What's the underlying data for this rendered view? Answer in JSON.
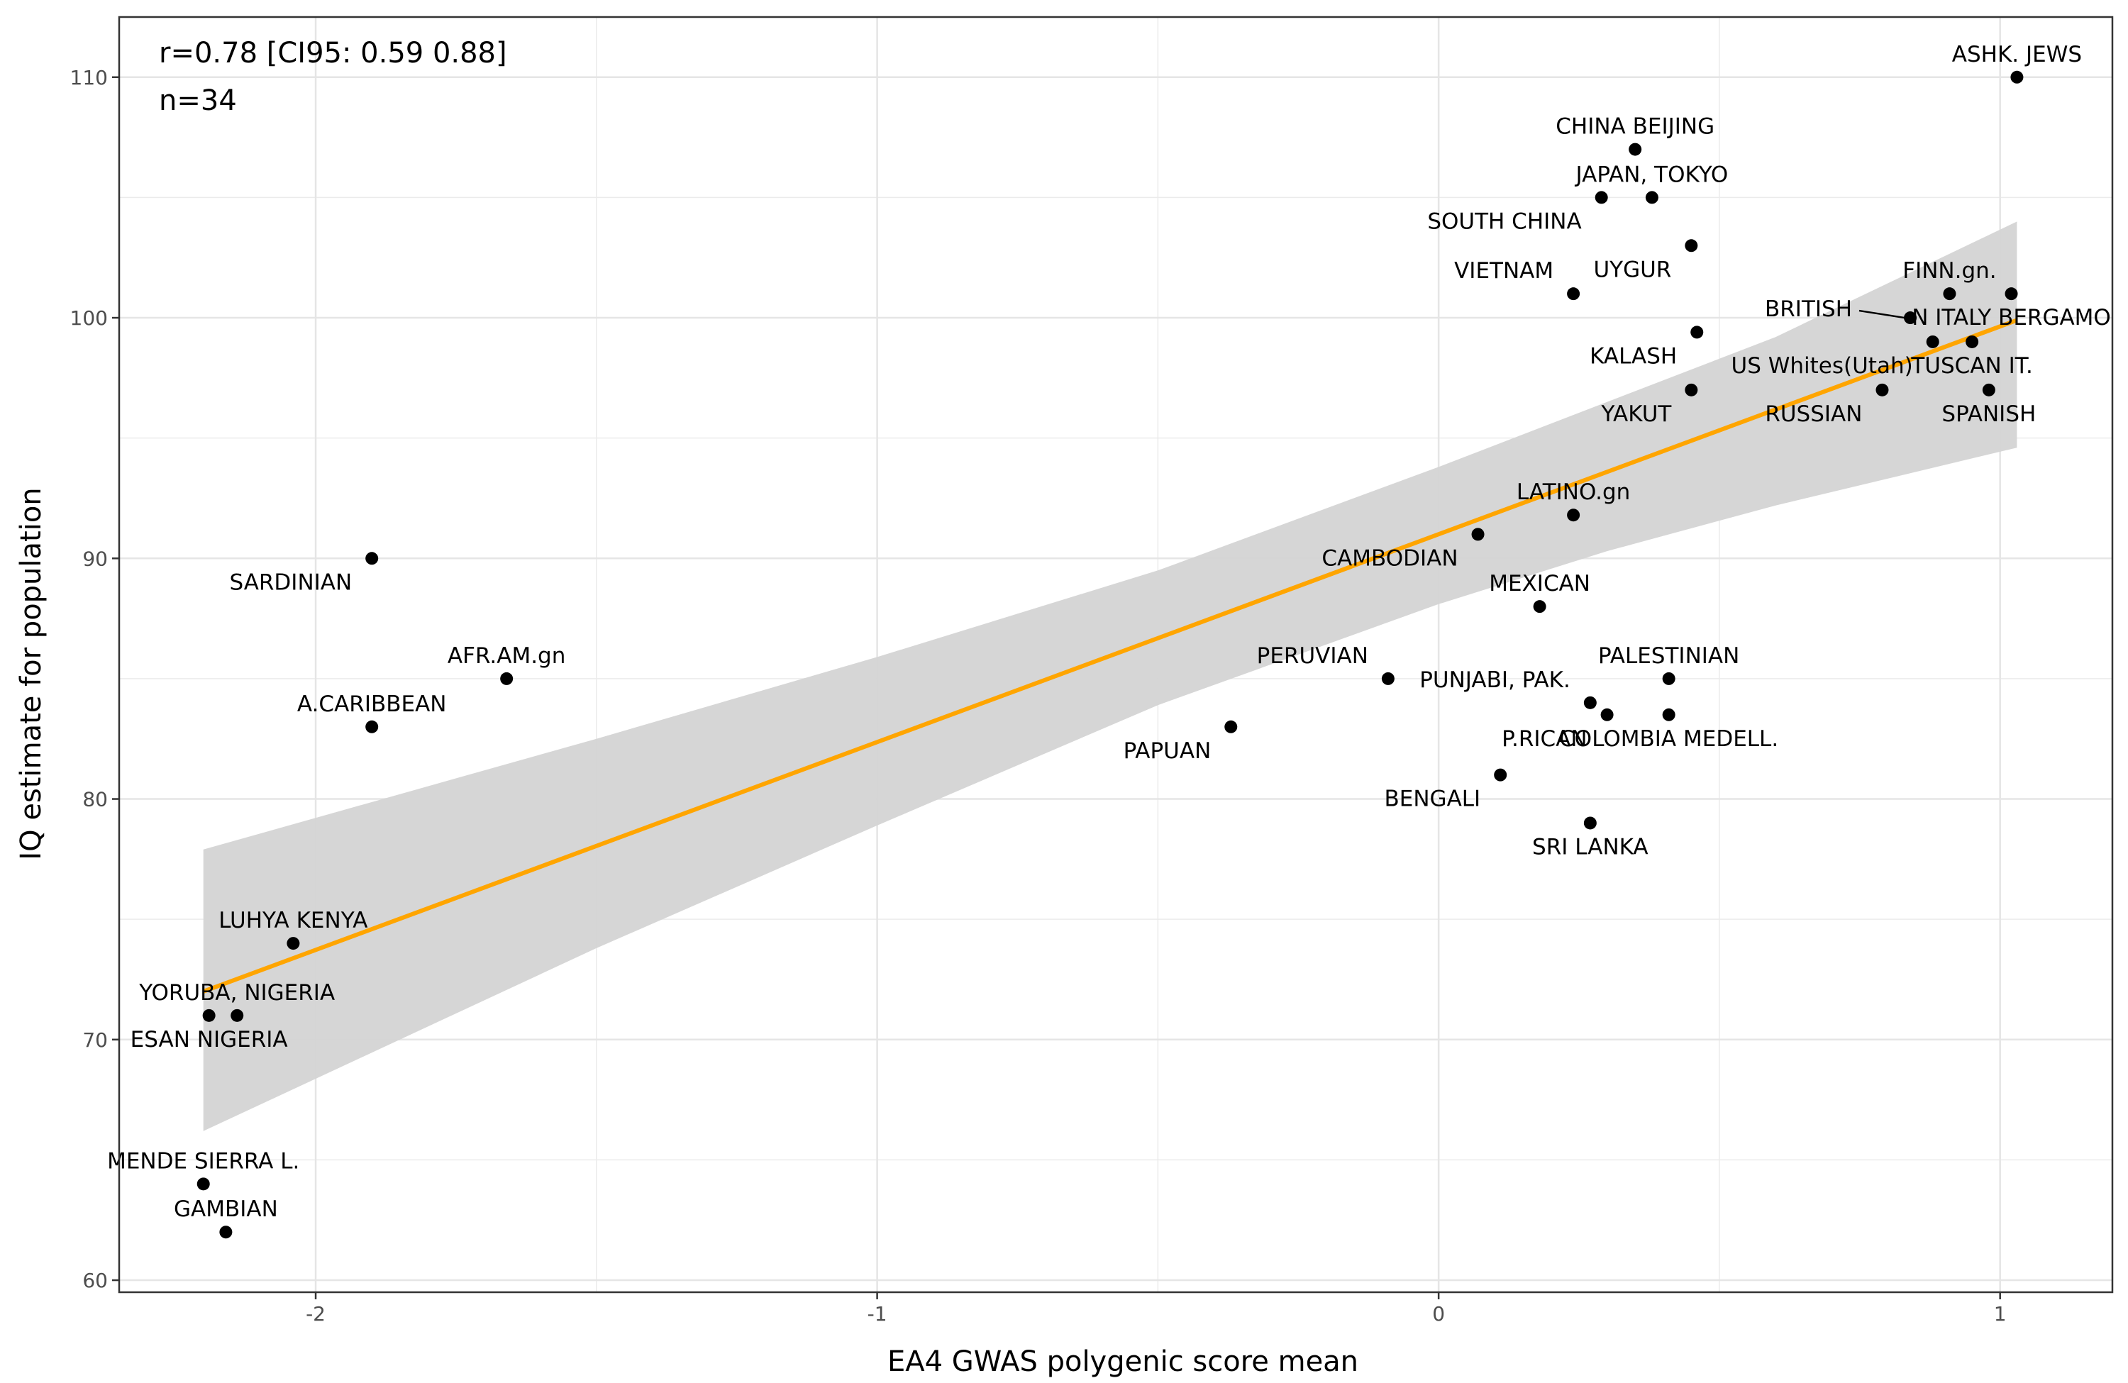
{
  "chart_data": {
    "type": "scatter",
    "xlabel": "EA4 GWAS polygenic score mean",
    "ylabel": "IQ estimate for population",
    "xlim": [
      -2.35,
      1.2
    ],
    "ylim": [
      59.5,
      112.5
    ],
    "x_ticks": [
      -2,
      -1,
      0,
      1
    ],
    "x_tick_labels": [
      "-2",
      "-1",
      "0",
      "1"
    ],
    "y_ticks": [
      60,
      70,
      80,
      90,
      100,
      110
    ],
    "y_tick_labels": [
      "60",
      "70",
      "80",
      "90",
      "100",
      "110"
    ],
    "grid": true,
    "annotation_lines": [
      "r=0.78 [CI95: 0.59 0.88]",
      "n=34"
    ],
    "regression": {
      "color": "#FFA500",
      "x": [
        -2.2,
        1.03
      ],
      "y": [
        72.0,
        99.9
      ],
      "ci_band_color": "#d4d4d4",
      "ci_x": [
        -2.2,
        -1.5,
        -1.0,
        -0.5,
        0.0,
        0.3,
        0.6,
        1.03
      ],
      "ci_lower": [
        66.2,
        73.8,
        78.9,
        83.9,
        88.1,
        90.3,
        92.2,
        94.6
      ],
      "ci_upper": [
        77.9,
        82.5,
        85.9,
        89.5,
        93.8,
        96.5,
        99.2,
        104.0
      ]
    },
    "points": [
      {
        "label": "ASHK. JEWS",
        "x": 1.03,
        "y": 110,
        "anchor": "above"
      },
      {
        "label": "CHINA BEIJING",
        "x": 0.35,
        "y": 107,
        "anchor": "above"
      },
      {
        "label": "JAPAN, TOKYO",
        "x": 0.38,
        "y": 105,
        "anchor": "above"
      },
      {
        "label": "SOUTH CHINA",
        "x": 0.29,
        "y": 105,
        "anchor": "below-left"
      },
      {
        "label": "UYGUR",
        "x": 0.45,
        "y": 103,
        "anchor": "below-left"
      },
      {
        "label": "VIETNAM",
        "x": 0.24,
        "y": 101,
        "anchor": "above-left"
      },
      {
        "label": "FINN.gn.",
        "x": 0.91,
        "y": 101,
        "anchor": "above"
      },
      {
        "label": "BRITISH",
        "x": 0.84,
        "y": 100,
        "anchor": "left-leader"
      },
      {
        "label": "N ITALY BERGAMO",
        "x": 1.02,
        "y": 101,
        "anchor": "below"
      },
      {
        "label": "KALASH",
        "x": 0.46,
        "y": 99.4,
        "anchor": "below-left"
      },
      {
        "label": "US Whites(Utah)",
        "x": 0.88,
        "y": 99,
        "anchor": "below-left"
      },
      {
        "label": "TUSCAN IT.",
        "x": 0.95,
        "y": 99,
        "anchor": "below"
      },
      {
        "label": "YAKUT",
        "x": 0.45,
        "y": 97,
        "anchor": "below-left"
      },
      {
        "label": "RUSSIAN",
        "x": 0.79,
        "y": 97,
        "anchor": "below-left"
      },
      {
        "label": "SPANISH",
        "x": 0.98,
        "y": 97,
        "anchor": "below"
      },
      {
        "label": "LATINO.gn",
        "x": 0.24,
        "y": 91.8,
        "anchor": "above"
      },
      {
        "label": "CAMBODIAN",
        "x": 0.07,
        "y": 91,
        "anchor": "below-left"
      },
      {
        "label": "SARDINIAN",
        "x": -1.9,
        "y": 90,
        "anchor": "below-left"
      },
      {
        "label": "MEXICAN",
        "x": 0.18,
        "y": 88,
        "anchor": "above"
      },
      {
        "label": "AFR.AM.gn",
        "x": -1.66,
        "y": 85,
        "anchor": "above"
      },
      {
        "label": "PERUVIAN",
        "x": -0.09,
        "y": 85,
        "anchor": "above-left"
      },
      {
        "label": "PALESTINIAN",
        "x": 0.41,
        "y": 85,
        "anchor": "above"
      },
      {
        "label": "PUNJABI, PAK.",
        "x": 0.27,
        "y": 84,
        "anchor": "above-left"
      },
      {
        "label": "P.RICAN",
        "x": 0.3,
        "y": 83.5,
        "anchor": "below-left"
      },
      {
        "label": "COLOMBIA MEDELL.",
        "x": 0.41,
        "y": 83.5,
        "anchor": "below"
      },
      {
        "label": "A.CARIBBEAN",
        "x": -1.9,
        "y": 83,
        "anchor": "above"
      },
      {
        "label": "PAPUAN",
        "x": -0.37,
        "y": 83,
        "anchor": "below-left"
      },
      {
        "label": "BENGALI",
        "x": 0.11,
        "y": 81,
        "anchor": "below-left"
      },
      {
        "label": "SRI LANKA",
        "x": 0.27,
        "y": 79,
        "anchor": "below"
      },
      {
        "label": "LUHYA KENYA",
        "x": -2.04,
        "y": 74,
        "anchor": "above"
      },
      {
        "label": "YORUBA, NIGERIA",
        "x": -2.14,
        "y": 71,
        "anchor": "above"
      },
      {
        "label": "ESAN NIGERIA",
        "x": -2.19,
        "y": 71,
        "anchor": "below"
      },
      {
        "label": "MENDE SIERRA L.",
        "x": -2.2,
        "y": 64,
        "anchor": "above"
      },
      {
        "label": "GAMBIAN",
        "x": -2.16,
        "y": 62,
        "anchor": "above"
      }
    ]
  }
}
